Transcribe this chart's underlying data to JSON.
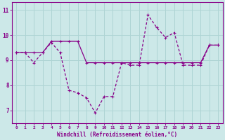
{
  "xlabel": "Windchill (Refroidissement éolien,°C)",
  "background_color": "#cce8e8",
  "grid_color": "#aed4d4",
  "line_color": "#880088",
  "hours": [
    0,
    1,
    2,
    3,
    4,
    5,
    6,
    7,
    8,
    9,
    10,
    11,
    12,
    13,
    14,
    15,
    16,
    17,
    18,
    19,
    20,
    21,
    22,
    23
  ],
  "windchill": [
    9.3,
    9.3,
    8.9,
    9.3,
    9.7,
    9.3,
    7.8,
    7.7,
    7.5,
    6.9,
    7.55,
    7.55,
    8.9,
    8.8,
    8.8,
    10.8,
    10.3,
    9.9,
    10.1,
    8.8,
    8.8,
    8.8,
    9.6,
    9.6
  ],
  "temperature": [
    9.3,
    9.3,
    9.3,
    9.3,
    9.75,
    9.75,
    9.75,
    9.75,
    8.9,
    8.9,
    8.9,
    8.9,
    8.9,
    8.9,
    8.9,
    8.9,
    8.9,
    8.9,
    8.9,
    8.9,
    8.9,
    8.9,
    9.6,
    9.6
  ],
  "ylim": [
    6.5,
    11.3
  ],
  "yticks": [
    7,
    8,
    9,
    10,
    11
  ],
  "xlim": [
    -0.5,
    23.5
  ]
}
